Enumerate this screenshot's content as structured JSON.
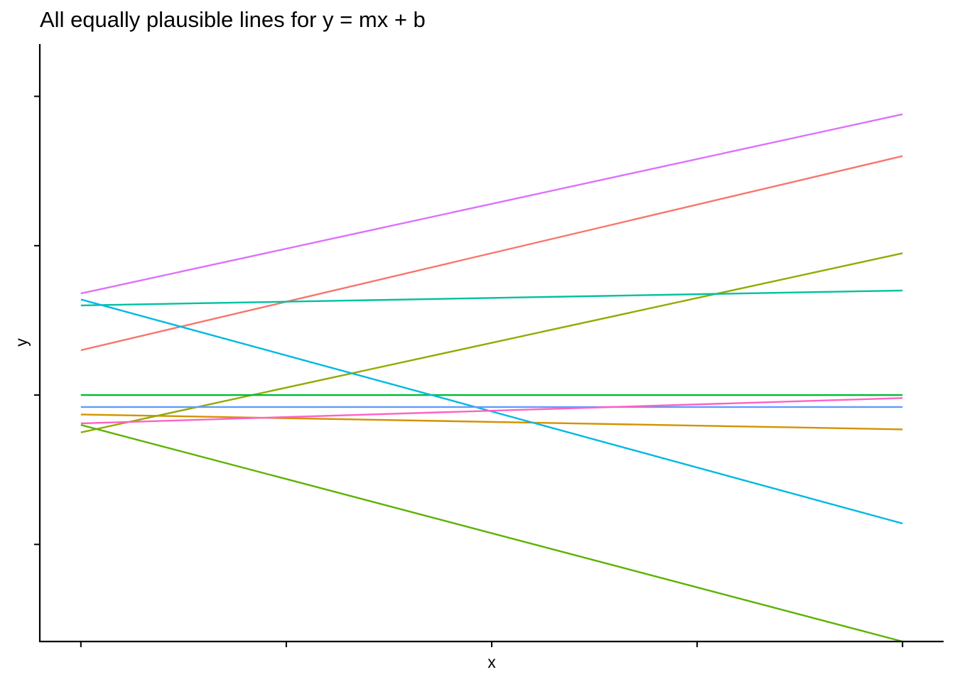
{
  "chart_data": {
    "type": "line",
    "title": "All equally plausible lines for y = mx + b",
    "xlabel": "x",
    "ylabel": "y",
    "xlim": [
      -0.05,
      1.05
    ],
    "ylim": [
      -0.65,
      3.35
    ],
    "x_ticks": [
      0,
      0.25,
      0.5,
      0.75,
      1
    ],
    "y_ticks": [
      0,
      1,
      2,
      3
    ],
    "tick_labels_visible": false,
    "grid": false,
    "legend": "none",
    "series": [
      {
        "color": "#F8766D",
        "x": [
          0,
          1
        ],
        "y": [
          1.3,
          2.6
        ]
      },
      {
        "color": "#D39200",
        "x": [
          0,
          1
        ],
        "y": [
          0.87,
          0.77
        ]
      },
      {
        "color": "#93AA00",
        "x": [
          0,
          1
        ],
        "y": [
          0.75,
          1.95
        ]
      },
      {
        "color": "#5BB300",
        "x": [
          0,
          1
        ],
        "y": [
          0.8,
          -0.65
        ]
      },
      {
        "color": "#00BA38",
        "x": [
          0,
          1
        ],
        "y": [
          1.0,
          1.0
        ]
      },
      {
        "color": "#00C19F",
        "x": [
          0,
          1
        ],
        "y": [
          1.6,
          1.7
        ]
      },
      {
        "color": "#00B9E3",
        "x": [
          0,
          1
        ],
        "y": [
          1.64,
          0.14
        ]
      },
      {
        "color": "#619CFF",
        "x": [
          0,
          1
        ],
        "y": [
          0.92,
          0.92
        ]
      },
      {
        "color": "#DB72FB",
        "x": [
          0,
          1
        ],
        "y": [
          1.68,
          2.88
        ]
      },
      {
        "color": "#FF61C3",
        "x": [
          0,
          1
        ],
        "y": [
          0.81,
          0.98
        ]
      }
    ]
  }
}
